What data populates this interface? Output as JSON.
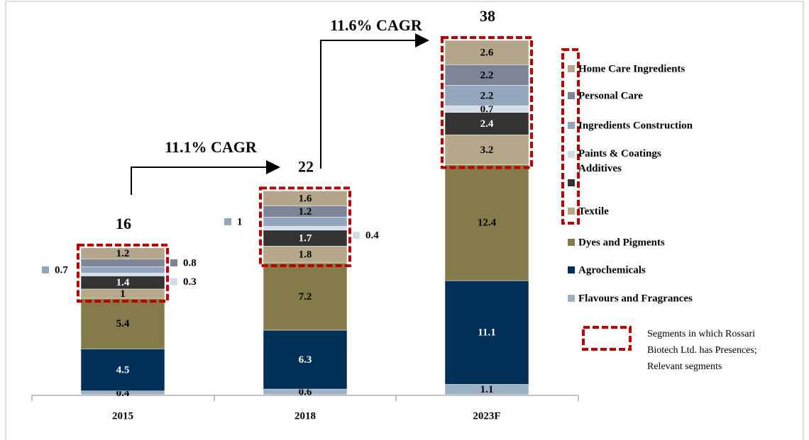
{
  "chart_data": {
    "type": "stacked_bar",
    "categories": [
      "2015",
      "2018",
      "2023F"
    ],
    "totals": [
      "16",
      "22",
      "38"
    ],
    "annotations": [
      "11.1% CAGR",
      "11.6% CAGR"
    ],
    "series": [
      {
        "name": "Flavours and Fragrances",
        "color": "#9cb1c3",
        "values": [
          0.4,
          0.6,
          1.1
        ]
      },
      {
        "name": "Agrochemicals",
        "color": "#003057",
        "values": [
          4.5,
          6.3,
          11.1
        ]
      },
      {
        "name": "Dyes and Pigments",
        "color": "#857a4a",
        "values": [
          5.4,
          7.2,
          12.4
        ]
      },
      {
        "name": "Textile",
        "color": "#b5a98a",
        "values": [
          1.0,
          1.8,
          3.2
        ]
      },
      {
        "name": null,
        "color": "#333333",
        "values": [
          1.4,
          1.7,
          2.4
        ]
      },
      {
        "name": "Paints & Coatings Additives",
        "color": "#d3dde8",
        "values": [
          0.3,
          0.4,
          0.7
        ]
      },
      {
        "name": "Ingredients Construction",
        "color": "#92a7bd",
        "values": [
          0.7,
          1.0,
          2.2
        ]
      },
      {
        "name": "Personal Care",
        "color": "#7f8598",
        "values": [
          0.8,
          1.2,
          2.2
        ]
      },
      {
        "name": "Home Care Ingredients",
        "color": "#b3a68a",
        "values": [
          1.2,
          1.6,
          2.6
        ]
      }
    ],
    "note": "Segments in which Rossari Biotech Ltd. has Presences; Relevant segments"
  }
}
